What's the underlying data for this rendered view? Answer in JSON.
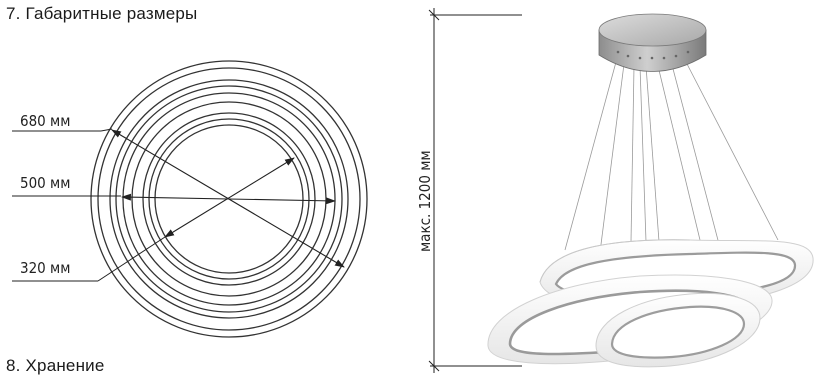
{
  "section7": {
    "title": "7. Габаритные размеры"
  },
  "section8": {
    "title": "8. Хранение"
  },
  "top_view": {
    "dimensions": [
      {
        "label": "680 мм"
      },
      {
        "label": "500 мм"
      },
      {
        "label": "320 мм"
      }
    ]
  },
  "side_view": {
    "height_label": "макс. 1200 мм"
  }
}
